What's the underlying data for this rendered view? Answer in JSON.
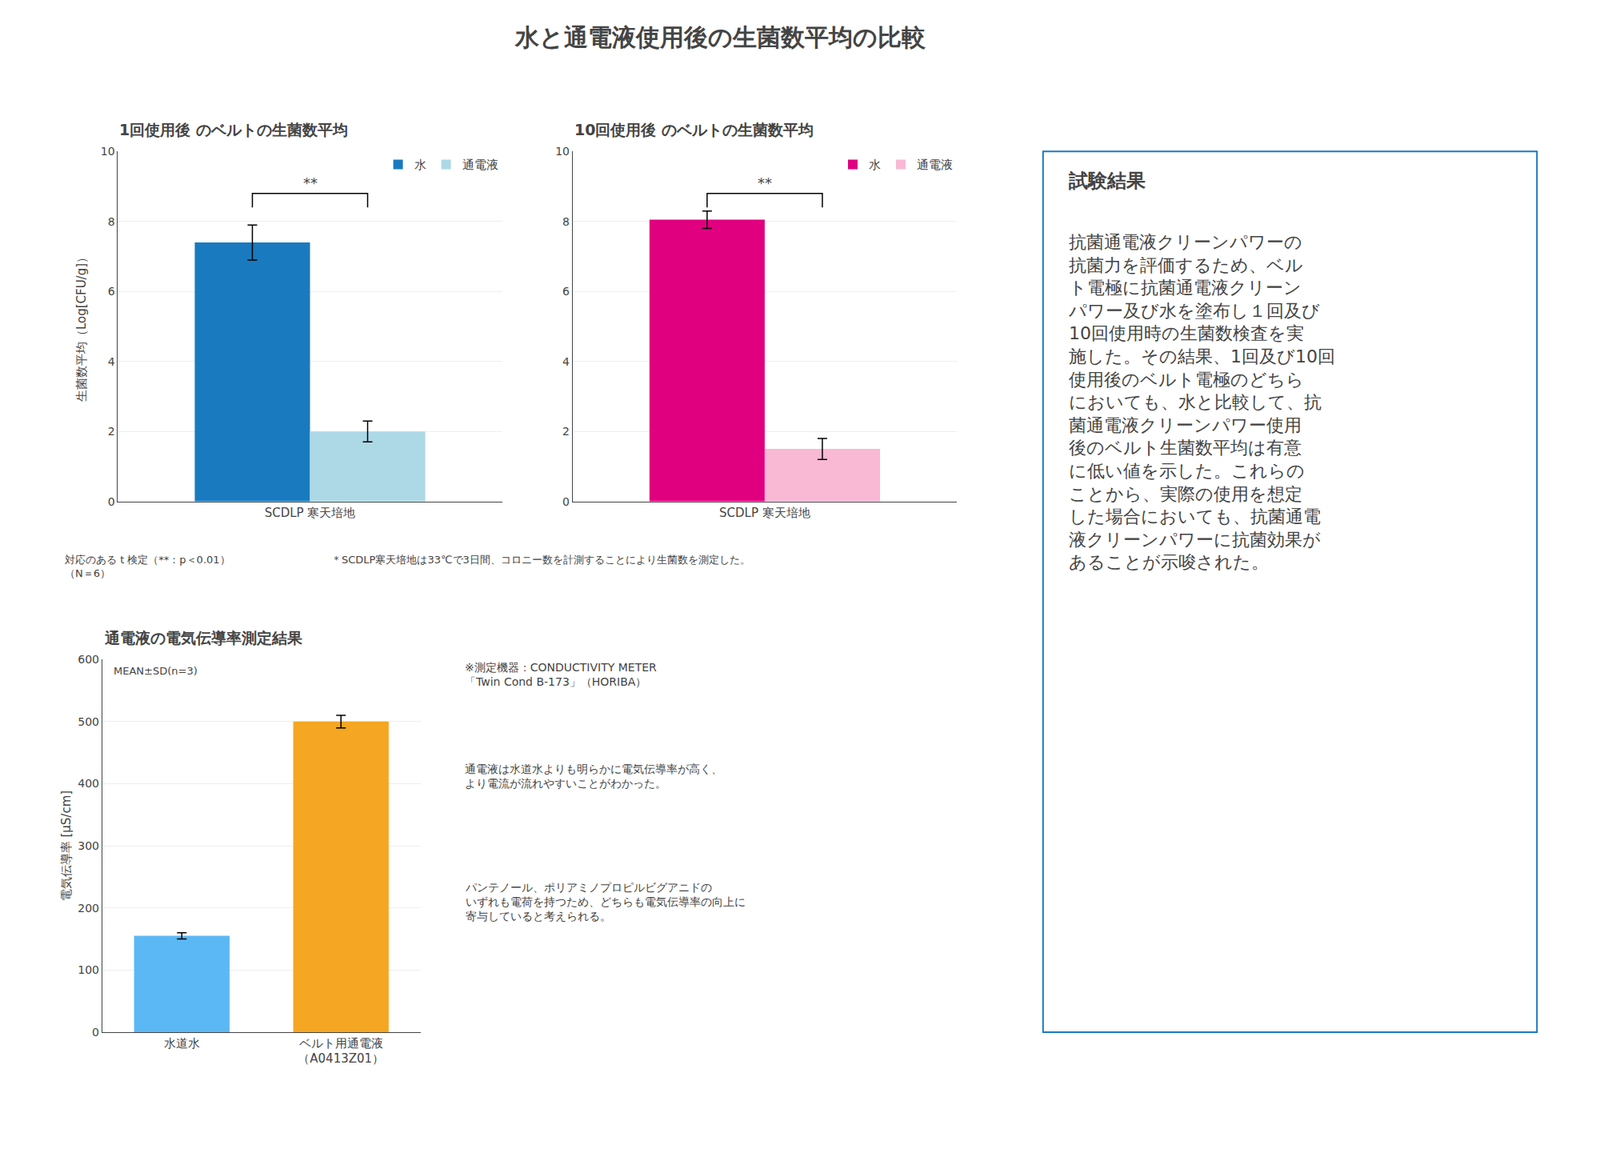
{
  "title": "水と通電液使用後の生菌数平均の比較",
  "chart_data": [
    {
      "type": "bar",
      "title": "1回使用後 のベルトの生菌数平均",
      "categories": [
        "SCDLP 寒天培地"
      ],
      "series": [
        {
          "name": "水",
          "color": "#1a7abf",
          "values": [
            7.4
          ],
          "errors": [
            0.5
          ]
        },
        {
          "name": "通電液",
          "color": "#add8e6",
          "values": [
            2.0
          ],
          "errors": [
            0.3
          ]
        }
      ],
      "y_label": "生菌数平均（Log[CFU/g]）",
      "ylim": [
        0,
        10
      ],
      "yticks": [
        0,
        2,
        4,
        6,
        8,
        10
      ],
      "grid": true,
      "legend": "upper right",
      "significance": {
        "text": "**",
        "y": 8.8,
        "bracket_y": 8.4
      }
    },
    {
      "type": "bar",
      "title": "10回使用後 のベルトの生菌数平均",
      "categories": [
        "SCDLP 寒天培地"
      ],
      "series": [
        {
          "name": "水",
          "color": "#e0007f",
          "values": [
            8.05
          ],
          "errors": [
            0.25
          ]
        },
        {
          "name": "通電液",
          "color": "#f9b8d4",
          "values": [
            1.5
          ],
          "errors": [
            0.3
          ]
        }
      ],
      "ylim": [
        0,
        10
      ],
      "yticks": [
        0,
        2,
        4,
        6,
        8,
        10
      ],
      "grid": true,
      "legend": "upper right",
      "significance": {
        "text": "**",
        "y": 8.8,
        "bracket_y": 8.4
      }
    },
    {
      "type": "bar",
      "title": "通電液の電気伝導率測定結果",
      "categories": [
        "水道水",
        "ベルト用通電液\n（A0413Z01）"
      ],
      "values": [
        155,
        500
      ],
      "errors": [
        5,
        10
      ],
      "colors": [
        "#5bb8f5",
        "#f5a623"
      ],
      "y_label": "電気伝導率 [μS/cm]",
      "ylim": [
        0,
        600
      ],
      "yticks": [
        0,
        100,
        200,
        300,
        400,
        500,
        600
      ],
      "grid": true,
      "annotations": [
        {
          "text": "MEAN±SD(n=3)",
          "y": 570
        }
      ],
      "notes": [
        "※測定機器：CONDUCTIVITY METER\n「Twin Cond B-173」（HORIBA）",
        "通電液は水道水よりも明らかに電気伝導率が高く、\nより電流が流れやすいことがわかった。",
        "パンテノール、ポリアミノプロピルビグアニドの\nいずれも電荷を持つため、どちらも電気伝導率の向上に\n寄与していると考えられる。"
      ]
    }
  ],
  "notes": [
    "対応のある t 検定（**：p＜0.01）\n（N＝6）",
    "＊SCDLP寒天培地は33℃で3日間、コロニー数を計測することにより生菌数を測定した。"
  ],
  "panel": {
    "title": "試験結果",
    "color": "#1a7abf",
    "text": "抗菌通電液クリーンパワーの\n抗菌力を評価するため、ベル\nト電極に抗菌通電液クリーン\nパワー及び水を塗布し１回及び\n10回使用時の生菌数検査を実\n施した。その結果、1回及び10回\n使用後のベルト電極のどちら\nにおいても、水と比較して、抗\n菌通電液クリーンパワー使用\n後のベルト生菌数平均は有意\nに低い値を示した。これらの\nことから、実際の使用を想定\nした場合においても、抗菌通電\n液クリーンパワーに抗菌効果が\nあることが示唆された。"
  }
}
